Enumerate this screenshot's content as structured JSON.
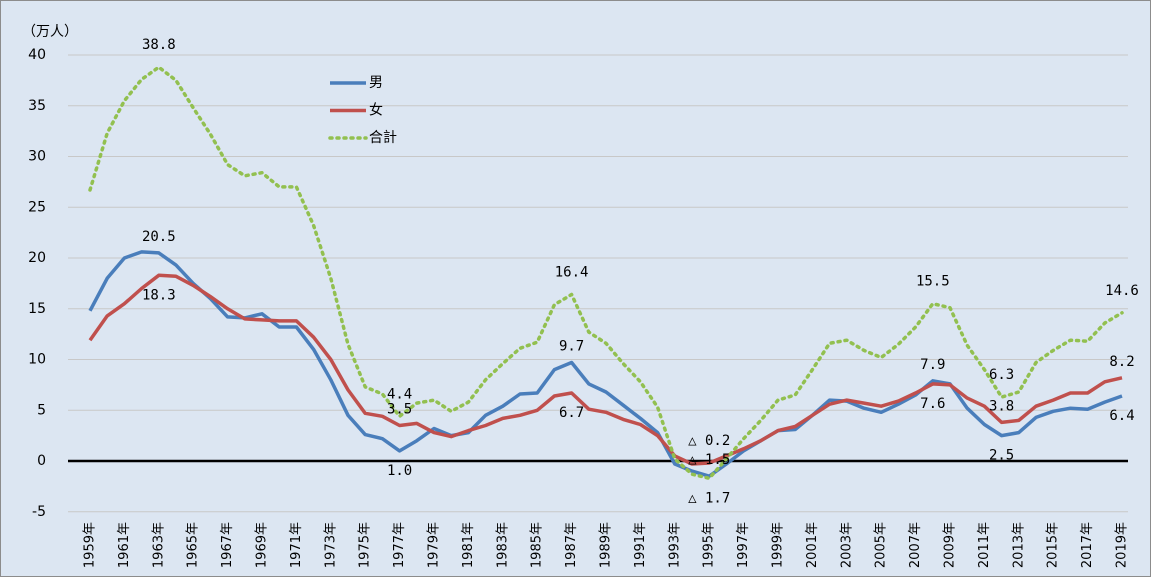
{
  "chart_data": {
    "type": "line",
    "y_axis_label": "（万人）",
    "categories": [
      "1959年",
      null,
      "1961年",
      null,
      "1963年",
      null,
      "1965年",
      null,
      "1967年",
      null,
      "1969年",
      null,
      "1971年",
      null,
      "1973年",
      null,
      "1975年",
      null,
      "1977年",
      null,
      "1979年",
      null,
      "1981年",
      null,
      "1983年",
      null,
      "1985年",
      null,
      "1987年",
      null,
      "1989年",
      null,
      "1991年",
      null,
      "1993年",
      null,
      "1995年",
      null,
      "1997年",
      null,
      "1999年",
      null,
      "2001年",
      null,
      "2003年",
      null,
      "2005年",
      null,
      "2007年",
      null,
      "2009年",
      null,
      "2011年",
      null,
      "2013年",
      null,
      "2015年",
      null,
      "2017年",
      null,
      "2019年"
    ],
    "series": [
      {
        "name": "男",
        "color": "#4a7ebb",
        "dash": false,
        "values": [
          14.8,
          18.0,
          20.0,
          20.6,
          20.5,
          19.3,
          17.5,
          16.0,
          14.2,
          14.1,
          14.5,
          13.2,
          13.2,
          11.0,
          8.0,
          4.5,
          2.6,
          2.2,
          1.0,
          2.0,
          3.2,
          2.5,
          2.8,
          4.5,
          5.4,
          6.6,
          6.7,
          9.0,
          9.7,
          7.6,
          6.8,
          5.5,
          4.2,
          2.8,
          -0.3,
          -1.0,
          -1.5,
          -0.3,
          1.0,
          2.0,
          3.0,
          3.1,
          4.5,
          6.0,
          5.9,
          5.2,
          4.8,
          5.6,
          6.5,
          7.9,
          7.6,
          5.2,
          3.6,
          2.5,
          2.8,
          4.3,
          4.9,
          5.2,
          5.1,
          5.8,
          6.4
        ],
        "value_labels": [
          null,
          null,
          null,
          null,
          "20.5",
          null,
          null,
          null,
          null,
          null,
          null,
          null,
          null,
          null,
          null,
          null,
          null,
          null,
          "1.0",
          null,
          null,
          null,
          null,
          null,
          null,
          null,
          null,
          null,
          "9.7",
          null,
          null,
          null,
          null,
          null,
          null,
          null,
          "△ 1.5",
          null,
          null,
          null,
          null,
          null,
          null,
          null,
          null,
          null,
          null,
          null,
          null,
          "7.9",
          null,
          null,
          null,
          "2.5",
          null,
          null,
          null,
          null,
          null,
          null,
          "6.4"
        ]
      },
      {
        "name": "女",
        "color": "#c0504d",
        "dash": false,
        "values": [
          11.9,
          14.3,
          15.5,
          17.0,
          18.3,
          18.2,
          17.3,
          16.2,
          15.0,
          14.0,
          13.9,
          13.8,
          13.8,
          12.2,
          10.0,
          7.0,
          4.7,
          4.4,
          3.5,
          3.7,
          2.8,
          2.4,
          3.0,
          3.5,
          4.2,
          4.5,
          5.0,
          6.4,
          6.7,
          5.1,
          4.8,
          4.1,
          3.6,
          2.5,
          0.5,
          -0.3,
          -0.2,
          0.5,
          1.2,
          2.0,
          3.0,
          3.4,
          4.5,
          5.6,
          6.0,
          5.7,
          5.4,
          5.9,
          6.7,
          7.6,
          7.5,
          6.2,
          5.4,
          3.8,
          4.0,
          5.4,
          6.0,
          6.7,
          6.7,
          7.8,
          8.2
        ],
        "value_labels": [
          null,
          null,
          null,
          null,
          "18.3",
          null,
          null,
          null,
          null,
          null,
          null,
          null,
          null,
          null,
          null,
          null,
          null,
          null,
          "3.5",
          null,
          null,
          null,
          null,
          null,
          null,
          null,
          null,
          null,
          "6.7",
          null,
          null,
          null,
          null,
          null,
          null,
          null,
          "△ 0.2",
          null,
          null,
          null,
          null,
          null,
          null,
          null,
          null,
          null,
          null,
          null,
          null,
          "7.6",
          null,
          null,
          null,
          "3.8",
          null,
          null,
          null,
          null,
          null,
          null,
          "8.2"
        ]
      },
      {
        "name": "合計",
        "color": "#92c050",
        "dash": true,
        "values": [
          26.7,
          32.3,
          35.5,
          37.6,
          38.8,
          37.5,
          34.8,
          32.2,
          29.2,
          28.1,
          28.4,
          27.0,
          27.0,
          23.2,
          18.0,
          11.5,
          7.3,
          6.6,
          4.4,
          5.7,
          6.0,
          4.9,
          5.8,
          8.0,
          9.6,
          11.1,
          11.7,
          15.4,
          16.4,
          12.7,
          11.6,
          9.6,
          7.8,
          5.3,
          0.2,
          -1.3,
          -1.7,
          0.2,
          2.2,
          4.0,
          6.0,
          6.5,
          9.0,
          11.6,
          11.9,
          10.9,
          10.2,
          11.5,
          13.2,
          15.5,
          15.1,
          11.4,
          9.0,
          6.3,
          6.8,
          9.7,
          10.9,
          11.9,
          11.8,
          13.6,
          14.6
        ],
        "value_labels": [
          null,
          null,
          null,
          null,
          "38.8",
          null,
          null,
          null,
          null,
          null,
          null,
          null,
          null,
          null,
          null,
          null,
          null,
          null,
          "4.4",
          null,
          null,
          null,
          null,
          null,
          null,
          null,
          null,
          null,
          "16.4",
          null,
          null,
          null,
          null,
          null,
          null,
          null,
          "△ 1.7",
          null,
          null,
          null,
          null,
          null,
          null,
          null,
          null,
          null,
          null,
          null,
          null,
          "15.5",
          null,
          null,
          null,
          "6.3",
          null,
          null,
          null,
          null,
          null,
          null,
          "14.6"
        ]
      }
    ],
    "ylim": [
      -5,
      40
    ],
    "yticks": [
      -5,
      0,
      5,
      10,
      15,
      20,
      25,
      30,
      35,
      40
    ],
    "grid": true,
    "legend": "top-center"
  }
}
